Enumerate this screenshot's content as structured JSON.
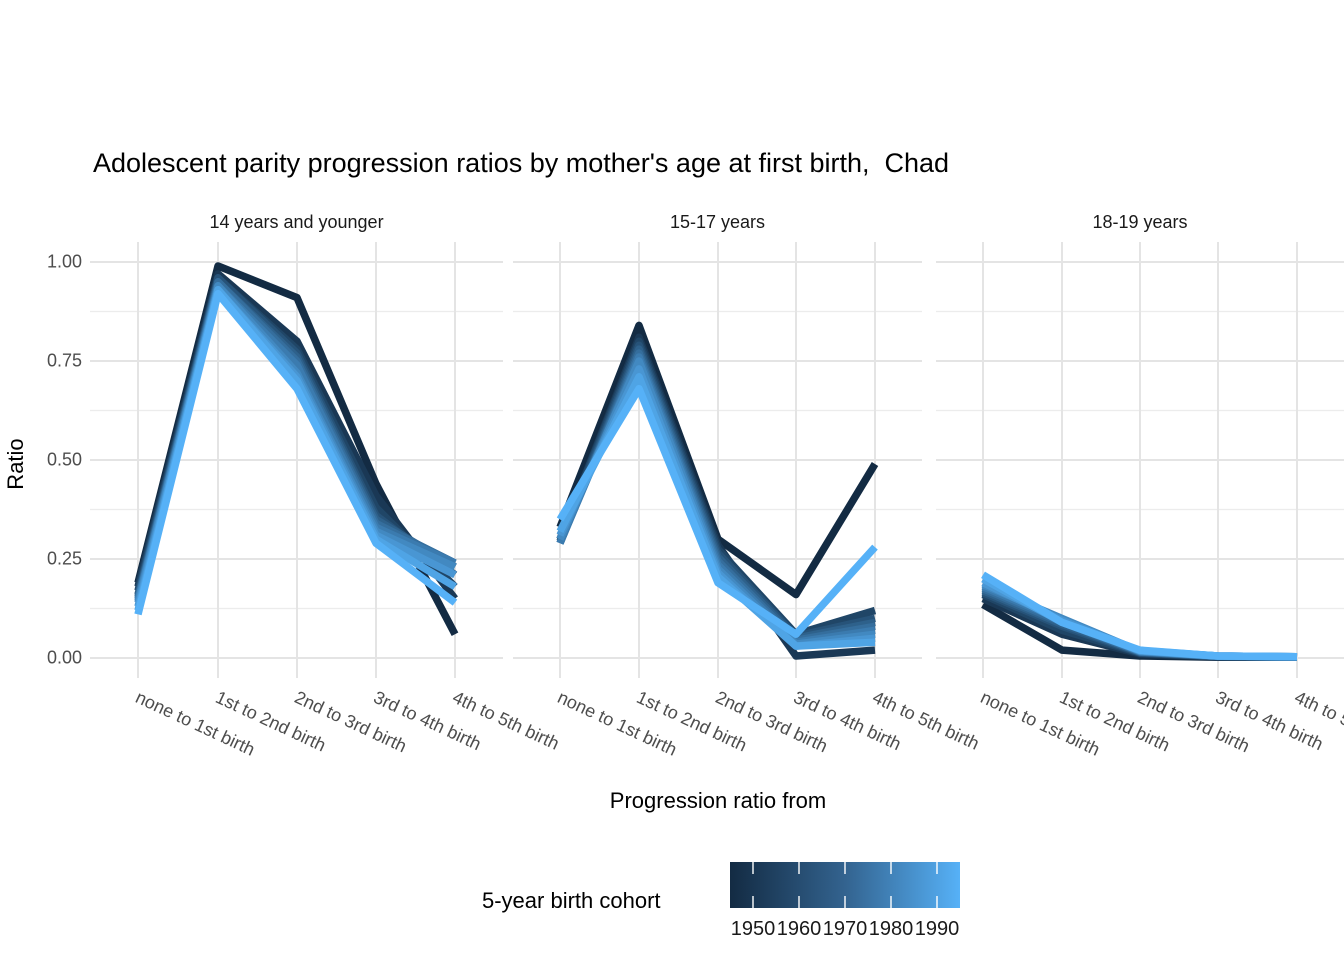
{
  "title": "Adolescent parity progression ratios by mother's age at first birth,  Chad",
  "axes": {
    "y_title": "Ratio",
    "x_title": "Progression ratio from",
    "y_tick_labels": [
      "1.00",
      "0.75",
      "0.50",
      "0.25",
      "0.00"
    ],
    "x_categories": [
      "none to 1st birth",
      "1st to 2nd birth",
      "2nd to 3rd birth",
      "3rd to 4th birth",
      "4th to 5th birth"
    ]
  },
  "legend": {
    "title": "5-year birth cohort",
    "tick_labels": [
      "1950",
      "1960",
      "1970",
      "1980",
      "1990"
    ],
    "gradient_low": "#132B43",
    "gradient_high": "#56B1F7",
    "value_range": [
      1945,
      1995
    ]
  },
  "chart_data": {
    "type": "line",
    "title": "Adolescent parity progression ratios by mother's age at first birth,  Chad",
    "xlabel": "Progression ratio from",
    "ylabel": "Ratio",
    "ylim": [
      0,
      1
    ],
    "y_major_ticks": [
      0.0,
      0.25,
      0.5,
      0.75,
      1.0
    ],
    "y_minor_ticks": [
      0.125,
      0.375,
      0.625,
      0.875
    ],
    "grid": true,
    "legend_position": "bottom",
    "categories": [
      "none to 1st birth",
      "1st to 2nd birth",
      "2nd to 3rd birth",
      "3rd to 4th birth",
      "4th to 5th birth"
    ],
    "color_scale": {
      "low": "#132B43",
      "high": "#56B1F7",
      "domain": [
        1945,
        1995
      ],
      "label": "5-year birth cohort"
    },
    "facets": [
      {
        "label": "14 years and younger",
        "series": [
          {
            "cohort": 1945,
            "values": [
              0.19,
              0.99,
              0.91,
              0.44,
              0.06
            ]
          },
          {
            "cohort": 1950,
            "values": [
              0.18,
              0.97,
              0.8,
              0.41,
              0.15
            ]
          },
          {
            "cohort": 1955,
            "values": [
              0.17,
              0.96,
              0.78,
              0.38,
              0.18
            ]
          },
          {
            "cohort": 1960,
            "values": [
              0.16,
              0.96,
              0.77,
              0.36,
              0.21
            ]
          },
          {
            "cohort": 1965,
            "values": [
              0.155,
              0.95,
              0.76,
              0.35,
              0.23
            ]
          },
          {
            "cohort": 1970,
            "values": [
              0.15,
              0.95,
              0.75,
              0.34,
              0.24
            ]
          },
          {
            "cohort": 1975,
            "values": [
              0.145,
              0.94,
              0.74,
              0.33,
              0.24
            ]
          },
          {
            "cohort": 1980,
            "values": [
              0.14,
              0.94,
              0.72,
              0.32,
              0.23
            ]
          },
          {
            "cohort": 1985,
            "values": [
              0.13,
              0.93,
              0.71,
              0.31,
              0.21
            ]
          },
          {
            "cohort": 1990,
            "values": [
              0.12,
              0.93,
              0.7,
              0.3,
              0.18
            ]
          },
          {
            "cohort": 1995,
            "values": [
              0.11,
              0.92,
              0.68,
              0.29,
              0.14
            ]
          }
        ]
      },
      {
        "label": "15-17 years",
        "series": [
          {
            "cohort": 1945,
            "values": [
              0.33,
              0.84,
              0.3,
              0.16,
              0.49
            ]
          },
          {
            "cohort": 1950,
            "values": [
              0.3,
              0.81,
              0.285,
              0.005,
              0.02
            ]
          },
          {
            "cohort": 1955,
            "values": [
              0.3,
              0.8,
              0.275,
              0.06,
              0.12
            ]
          },
          {
            "cohort": 1960,
            "values": [
              0.295,
              0.79,
              0.265,
              0.055,
              0.1
            ]
          },
          {
            "cohort": 1965,
            "values": [
              0.29,
              0.78,
              0.255,
              0.05,
              0.09
            ]
          },
          {
            "cohort": 1970,
            "values": [
              0.29,
              0.77,
              0.245,
              0.045,
              0.08
            ]
          },
          {
            "cohort": 1975,
            "values": [
              0.29,
              0.76,
              0.235,
              0.04,
              0.07
            ]
          },
          {
            "cohort": 1980,
            "values": [
              0.3,
              0.75,
              0.225,
              0.035,
              0.06
            ]
          },
          {
            "cohort": 1985,
            "values": [
              0.31,
              0.73,
              0.215,
              0.03,
              0.05
            ]
          },
          {
            "cohort": 1990,
            "values": [
              0.32,
              0.71,
              0.205,
              0.03,
              0.04
            ]
          },
          {
            "cohort": 1995,
            "values": [
              0.35,
              0.68,
              0.19,
              0.06,
              0.28
            ]
          }
        ]
      },
      {
        "label": "18-19 years",
        "series": [
          {
            "cohort": 1945,
            "values": [
              0.135,
              0.02,
              0.005,
              0.002,
              0.002
            ]
          },
          {
            "cohort": 1950,
            "values": [
              0.15,
              0.06,
              0.01,
              0.003,
              0.002
            ]
          },
          {
            "cohort": 1955,
            "values": [
              0.16,
              0.07,
              0.012,
              0.003,
              0.002
            ]
          },
          {
            "cohort": 1960,
            "values": [
              0.165,
              0.08,
              0.013,
              0.004,
              0.002
            ]
          },
          {
            "cohort": 1965,
            "values": [
              0.17,
              0.085,
              0.015,
              0.004,
              0.002
            ]
          },
          {
            "cohort": 1970,
            "values": [
              0.175,
              0.09,
              0.015,
              0.004,
              0.002
            ]
          },
          {
            "cohort": 1975,
            "values": [
              0.18,
              0.095,
              0.016,
              0.005,
              0.003
            ]
          },
          {
            "cohort": 1980,
            "values": [
              0.185,
              0.1,
              0.017,
              0.005,
              0.003
            ]
          },
          {
            "cohort": 1985,
            "values": [
              0.19,
              0.095,
              0.018,
              0.005,
              0.003
            ]
          },
          {
            "cohort": 1990,
            "values": [
              0.2,
              0.09,
              0.019,
              0.005,
              0.003
            ]
          },
          {
            "cohort": 1995,
            "values": [
              0.21,
              0.09,
              0.02,
              0.005,
              0.003
            ]
          }
        ]
      }
    ]
  }
}
